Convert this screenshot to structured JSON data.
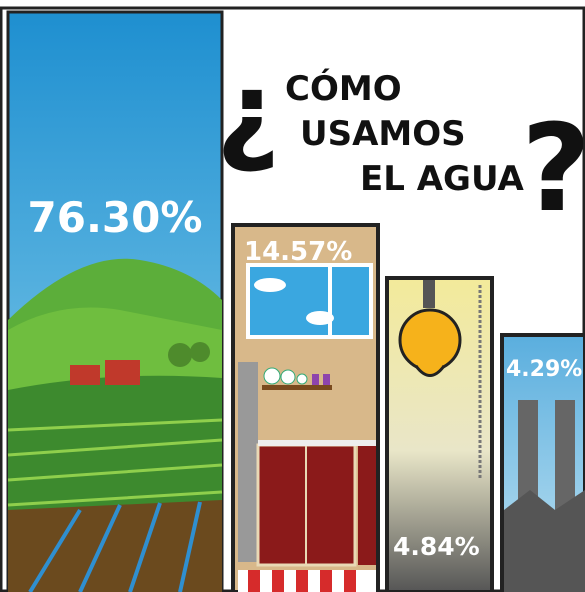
{
  "title": {
    "open": "¿",
    "lines": [
      "CÓMO",
      "USAMOS",
      "EL AGUA"
    ],
    "close": "?"
  },
  "panels": [
    {
      "label": "76.30%"
    },
    {
      "label": "14.57%"
    },
    {
      "label": "4.84%"
    },
    {
      "label": "4.29%"
    }
  ]
}
